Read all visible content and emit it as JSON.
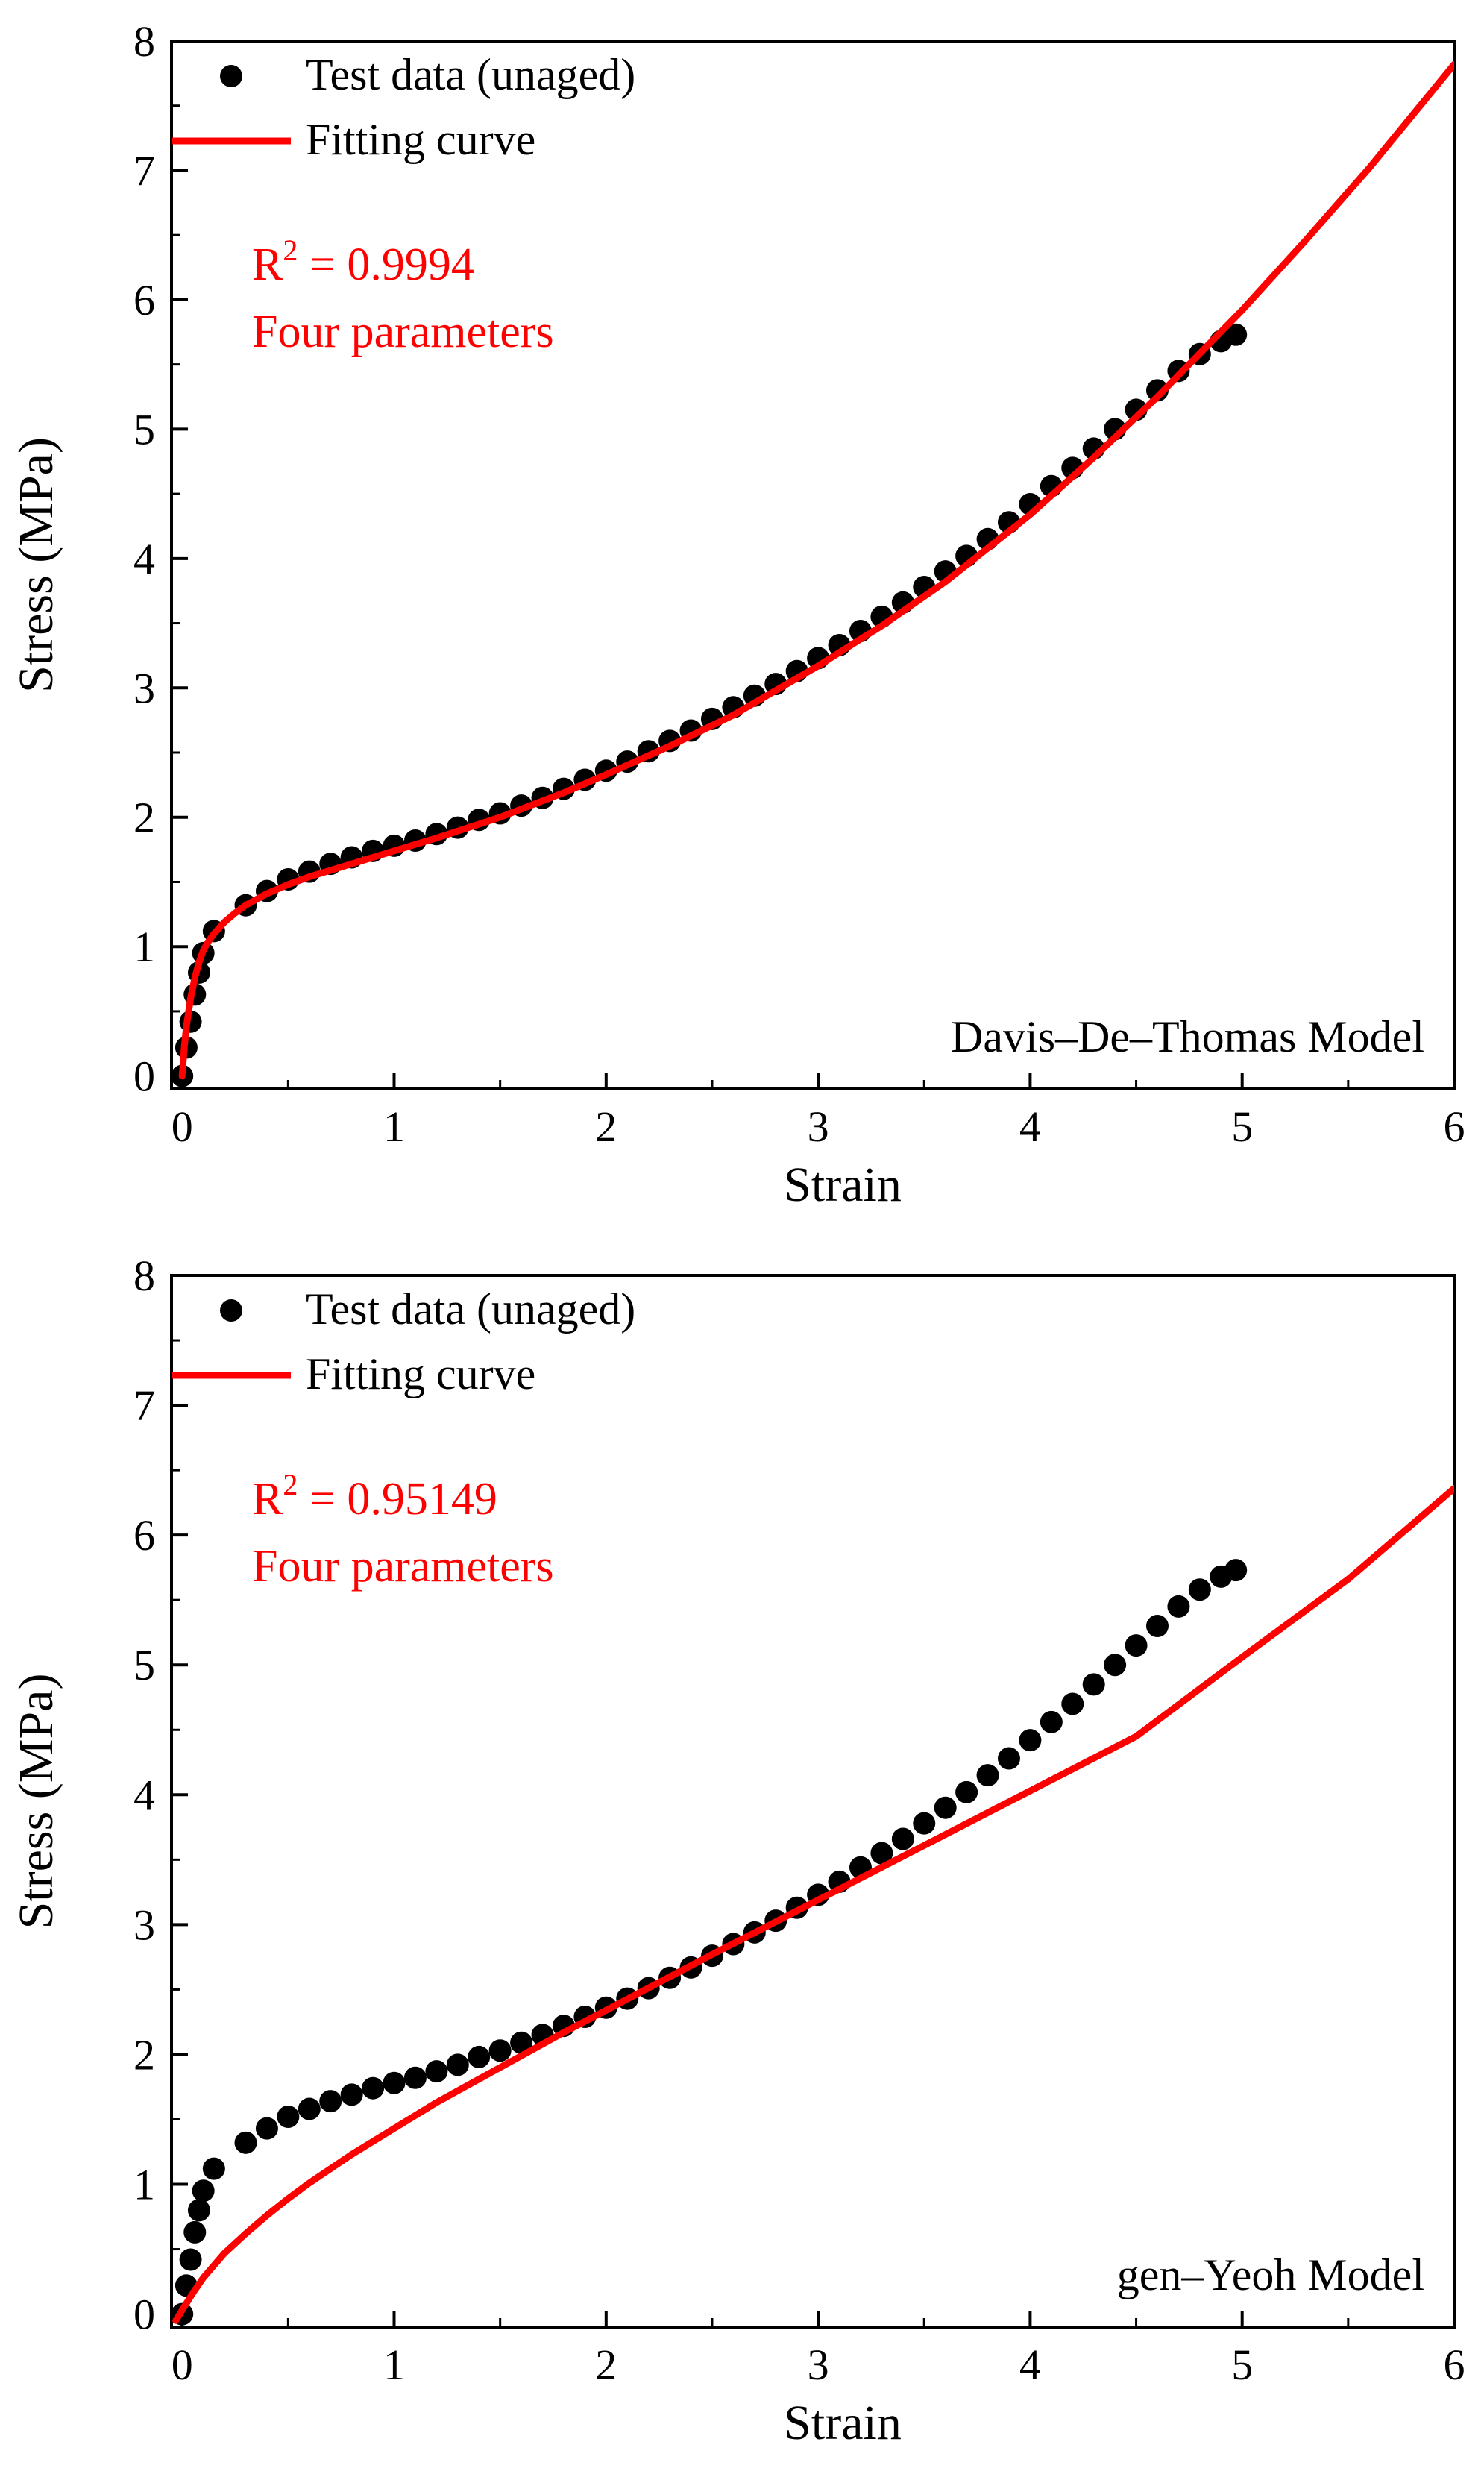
{
  "chart_data": [
    {
      "type": "scatter",
      "panel": "top",
      "xlabel": "Strain",
      "ylabel": "Stress (MPa)",
      "xlim": [
        -0.05,
        6
      ],
      "ylim": [
        -0.1,
        8
      ],
      "x_ticks": [
        "0",
        "1",
        "2",
        "3",
        "4",
        "5",
        "6"
      ],
      "y_ticks": [
        "0",
        "1",
        "2",
        "3",
        "4",
        "5",
        "6",
        "7",
        "8"
      ],
      "legend": {
        "position": "top-left",
        "entries": [
          "Test data (unaged)",
          "Fitting curve"
        ]
      },
      "annotation": {
        "r2_prefix": "R",
        "r2_sup": "2",
        "r2_value": " = 0.9994",
        "params": "Four parameters",
        "color": "#ff0000"
      },
      "model_label": "Davis–De–Thomas Model",
      "colors": {
        "data": "#000000",
        "fit": "#ff0000"
      },
      "series": [
        {
          "name": "Test data (unaged)",
          "kind": "scatter",
          "x": [
            0.0,
            0.02,
            0.04,
            0.06,
            0.08,
            0.1,
            0.15,
            0.3,
            0.4,
            0.5,
            0.6,
            0.7,
            0.8,
            0.9,
            1.0,
            1.1,
            1.2,
            1.3,
            1.4,
            1.5,
            1.6,
            1.7,
            1.8,
            1.9,
            2.0,
            2.1,
            2.2,
            2.3,
            2.4,
            2.5,
            2.6,
            2.7,
            2.8,
            2.9,
            3.0,
            3.1,
            3.2,
            3.3,
            3.4,
            3.5,
            3.6,
            3.7,
            3.8,
            3.9,
            4.0,
            4.1,
            4.2,
            4.3,
            4.4,
            4.5,
            4.6,
            4.7,
            4.8,
            4.9,
            4.97
          ],
          "y": [
            0.0,
            0.22,
            0.42,
            0.63,
            0.8,
            0.95,
            1.12,
            1.32,
            1.43,
            1.52,
            1.58,
            1.64,
            1.69,
            1.74,
            1.78,
            1.82,
            1.87,
            1.92,
            1.98,
            2.03,
            2.09,
            2.15,
            2.22,
            2.29,
            2.36,
            2.43,
            2.51,
            2.59,
            2.67,
            2.76,
            2.85,
            2.94,
            3.03,
            3.13,
            3.23,
            3.33,
            3.44,
            3.55,
            3.66,
            3.78,
            3.9,
            4.02,
            4.15,
            4.28,
            4.42,
            4.56,
            4.7,
            4.85,
            5.0,
            5.15,
            5.3,
            5.45,
            5.58,
            5.68,
            5.73
          ]
        },
        {
          "name": "Fitting curve",
          "kind": "line",
          "x": [
            0.0,
            0.01,
            0.02,
            0.04,
            0.06,
            0.08,
            0.1,
            0.12,
            0.15,
            0.2,
            0.25,
            0.3,
            0.4,
            0.5,
            0.6,
            0.8,
            1.0,
            1.2,
            1.5,
            1.8,
            2.0,
            2.3,
            2.6,
            3.0,
            3.3,
            3.6,
            4.0,
            4.3,
            4.6,
            5.0,
            5.3,
            5.6,
            6.0
          ],
          "y": [
            0.0,
            0.22,
            0.38,
            0.6,
            0.76,
            0.88,
            0.97,
            1.03,
            1.1,
            1.19,
            1.26,
            1.32,
            1.41,
            1.48,
            1.54,
            1.64,
            1.74,
            1.84,
            2.0,
            2.19,
            2.33,
            2.55,
            2.79,
            3.17,
            3.48,
            3.82,
            4.34,
            4.78,
            5.25,
            5.92,
            6.46,
            7.02,
            7.82
          ]
        }
      ]
    },
    {
      "type": "scatter",
      "panel": "bottom",
      "xlabel": "Strain",
      "ylabel": "Stress (MPa)",
      "xlim": [
        -0.05,
        6
      ],
      "ylim": [
        -0.1,
        8
      ],
      "x_ticks": [
        "0",
        "1",
        "2",
        "3",
        "4",
        "5",
        "6"
      ],
      "y_ticks": [
        "0",
        "1",
        "2",
        "3",
        "4",
        "5",
        "6",
        "7",
        "8"
      ],
      "legend": {
        "position": "top-left",
        "entries": [
          "Test data (unaged)",
          "Fitting curve"
        ]
      },
      "annotation": {
        "r2_prefix": "R",
        "r2_sup": "2",
        "r2_value": " = 0.95149",
        "params": "Four parameters",
        "color": "#ff0000"
      },
      "model_label": "gen–Yeoh Model",
      "colors": {
        "data": "#000000",
        "fit": "#ff0000"
      },
      "series": [
        {
          "name": "Test data (unaged)",
          "kind": "scatter",
          "x": [
            0.0,
            0.02,
            0.04,
            0.06,
            0.08,
            0.1,
            0.15,
            0.3,
            0.4,
            0.5,
            0.6,
            0.7,
            0.8,
            0.9,
            1.0,
            1.1,
            1.2,
            1.3,
            1.4,
            1.5,
            1.6,
            1.7,
            1.8,
            1.9,
            2.0,
            2.1,
            2.2,
            2.3,
            2.4,
            2.5,
            2.6,
            2.7,
            2.8,
            2.9,
            3.0,
            3.1,
            3.2,
            3.3,
            3.4,
            3.5,
            3.6,
            3.7,
            3.8,
            3.9,
            4.0,
            4.1,
            4.2,
            4.3,
            4.4,
            4.5,
            4.6,
            4.7,
            4.8,
            4.9,
            4.97
          ],
          "y": [
            0.0,
            0.22,
            0.42,
            0.63,
            0.8,
            0.95,
            1.12,
            1.32,
            1.43,
            1.52,
            1.58,
            1.64,
            1.69,
            1.74,
            1.78,
            1.82,
            1.87,
            1.92,
            1.98,
            2.03,
            2.09,
            2.15,
            2.22,
            2.29,
            2.36,
            2.43,
            2.51,
            2.59,
            2.67,
            2.76,
            2.85,
            2.94,
            3.03,
            3.13,
            3.23,
            3.33,
            3.44,
            3.55,
            3.66,
            3.78,
            3.9,
            4.02,
            4.15,
            4.28,
            4.42,
            4.56,
            4.7,
            4.85,
            5.0,
            5.15,
            5.3,
            5.45,
            5.58,
            5.68,
            5.73
          ]
        },
        {
          "name": "Fitting curve",
          "kind": "line",
          "x": [
            -0.03,
            0.0,
            0.05,
            0.1,
            0.2,
            0.3,
            0.4,
            0.5,
            0.6,
            0.8,
            1.0,
            1.2,
            1.5,
            1.8,
            2.0,
            2.5,
            3.0,
            3.5,
            4.0,
            4.5,
            5.0,
            5.5,
            6.0
          ],
          "y": [
            -0.05,
            0.03,
            0.16,
            0.28,
            0.47,
            0.62,
            0.76,
            0.89,
            1.01,
            1.23,
            1.43,
            1.63,
            1.9,
            2.17,
            2.34,
            2.77,
            3.19,
            3.61,
            4.03,
            4.45,
            5.06,
            5.66,
            6.36
          ]
        }
      ]
    }
  ]
}
